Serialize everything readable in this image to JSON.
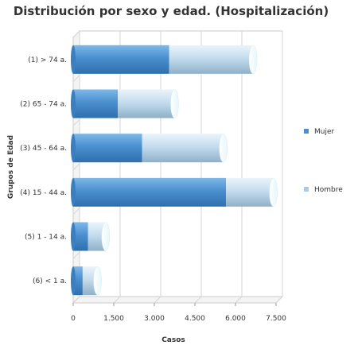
{
  "chart_data": {
    "type": "bar",
    "orientation": "horizontal",
    "stacked": true,
    "title": "Distribución por sexo y edad. (Hospitalización)",
    "xlabel": "Casos",
    "ylabel": "Grupos de Edad",
    "xlim": [
      0,
      7500
    ],
    "xticks": [
      "0",
      "1.500",
      "3.000",
      "4.500",
      "6.000",
      "7.500"
    ],
    "categories": [
      "(1) > 74 a.",
      "(2) 65 - 74 a.",
      "(3) 45 - 64 a.",
      "(4) 15 - 44 a.",
      "(5) 1 - 14 a.",
      "(6) < 1 a."
    ],
    "series": [
      {
        "name": "Mujer",
        "values": [
          3550,
          1650,
          2550,
          5650,
          550,
          350
        ],
        "color": "#4a8fcf"
      },
      {
        "name": "Hombre",
        "values": [
          3100,
          2100,
          3000,
          1750,
          650,
          550
        ],
        "color": "#a7cde6"
      }
    ],
    "grid": true,
    "legend_position": "right"
  }
}
